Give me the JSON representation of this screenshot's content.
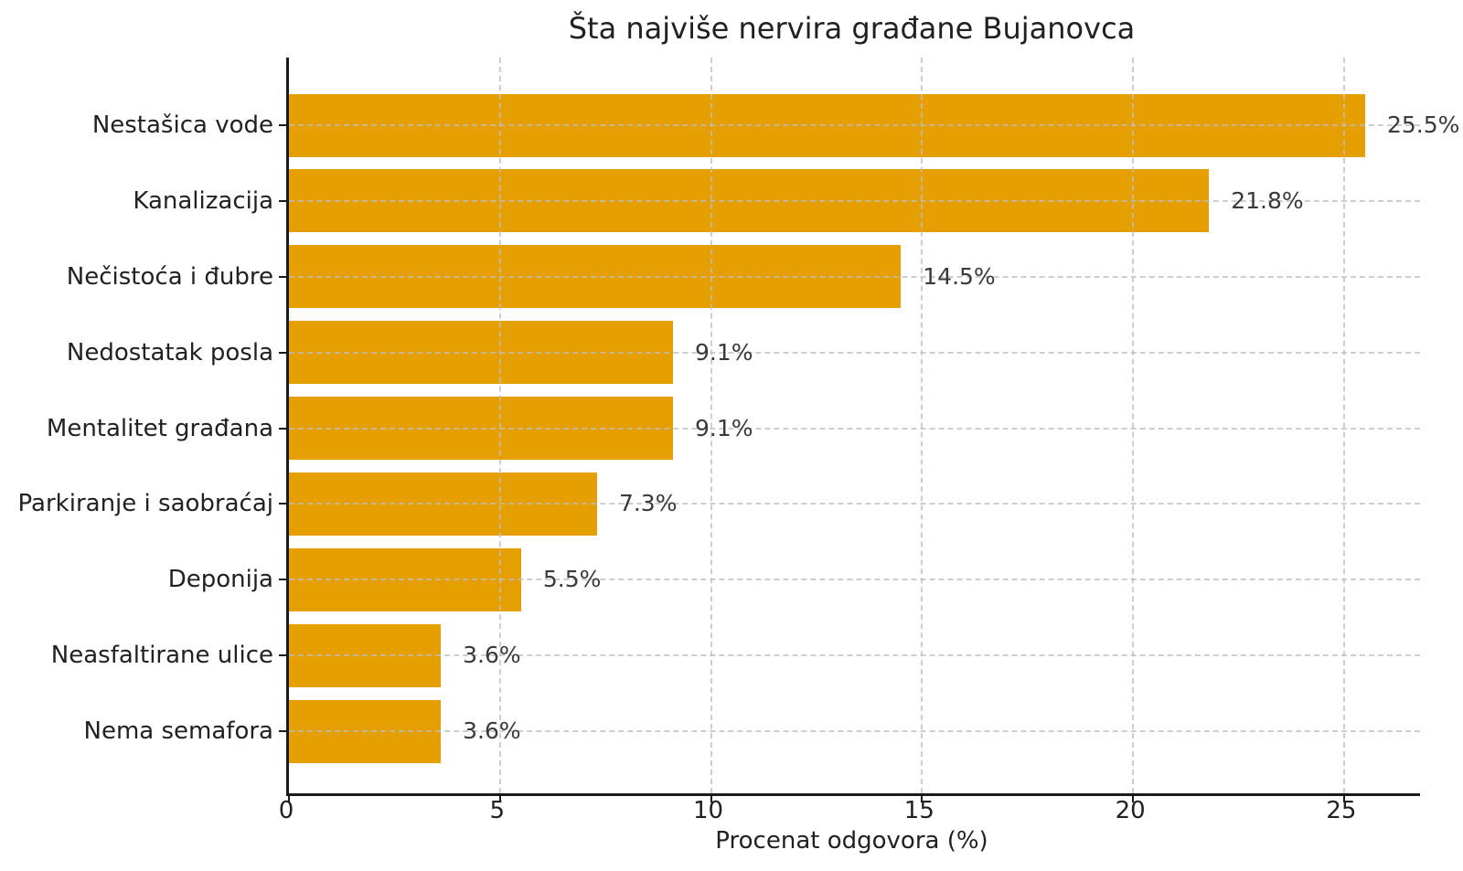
{
  "chart_data": {
    "type": "bar",
    "orientation": "horizontal",
    "title": "Šta najviše nervira građane Bujanovca",
    "xlabel": "Procenat odgovora (%)",
    "ylabel": "",
    "categories": [
      "Nestašica vode",
      "Kanalizacija",
      "Nečistoća i đubre",
      "Nedostatak posla",
      "Mentalitet građana",
      "Parkiranje i saobraćaj",
      "Deponija",
      "Neasfaltirane ulice",
      "Nema semafora"
    ],
    "values": [
      25.5,
      21.8,
      14.5,
      9.1,
      9.1,
      7.3,
      5.5,
      3.6,
      3.6
    ],
    "value_labels": [
      "25.5%",
      "21.8%",
      "14.5%",
      "9.1%",
      "9.1%",
      "7.3%",
      "5.5%",
      "3.6%",
      "3.6%"
    ],
    "xticks": [
      0,
      5,
      10,
      15,
      20,
      25
    ],
    "xlim": [
      0,
      26.8
    ],
    "bar_color": "#E69F00",
    "grid": true,
    "grid_style": "dashed",
    "legend_position": "none"
  }
}
